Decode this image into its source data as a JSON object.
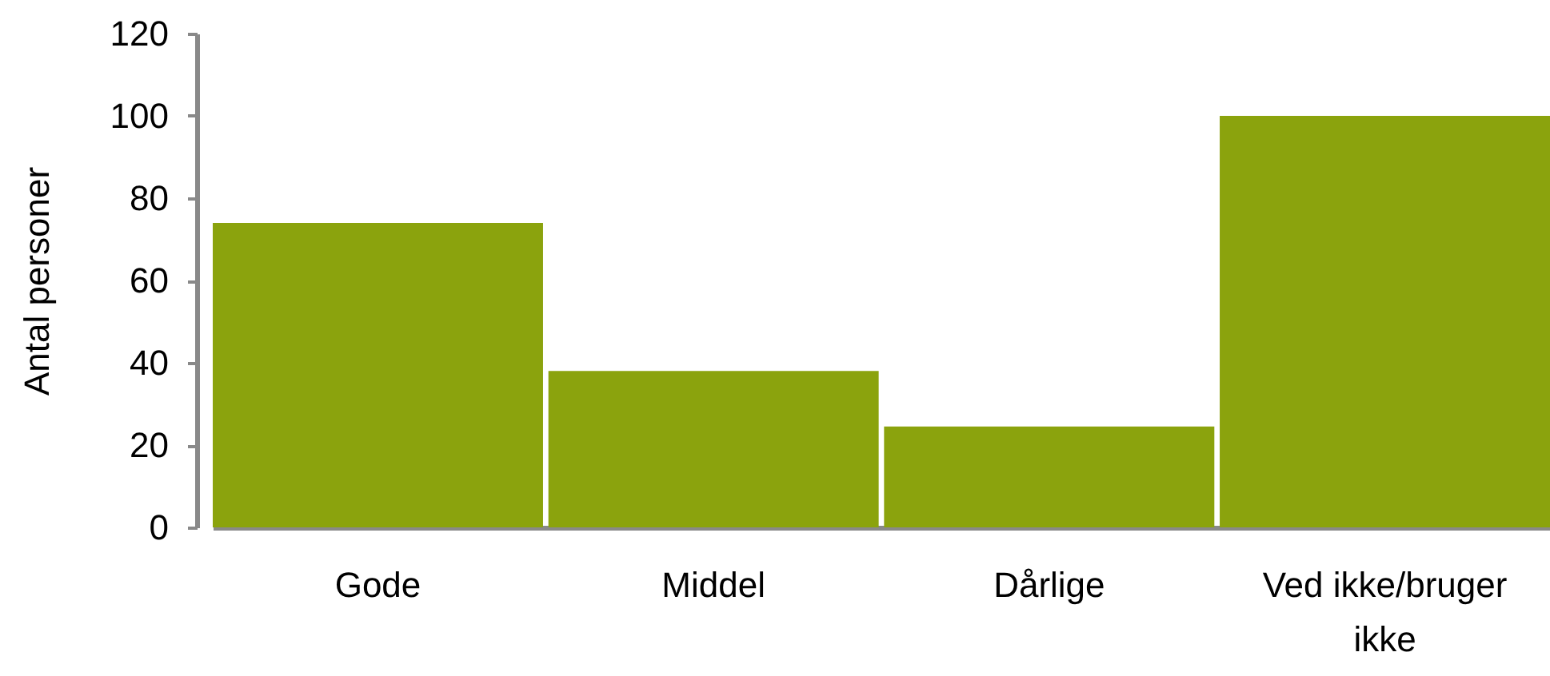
{
  "chart_data": {
    "type": "bar",
    "ylabel": "Antal personer",
    "categories": [
      "Gode",
      "Middel",
      "Dårlige",
      "Ved ikke/bruger ikke"
    ],
    "values": [
      74,
      38,
      24.5,
      100
    ],
    "color": "#8ba30d",
    "ylim": [
      0,
      120
    ],
    "yticks": [
      0,
      20,
      40,
      60,
      80,
      100,
      120
    ]
  }
}
